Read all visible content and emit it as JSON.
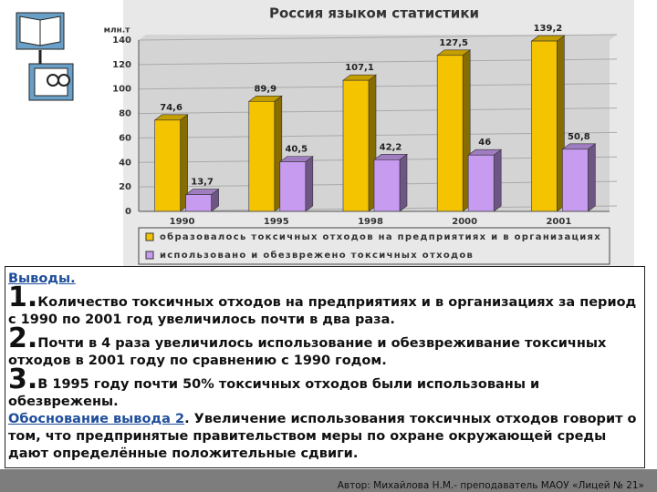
{
  "chart_data": {
    "type": "bar",
    "title": "Россия языком статистики",
    "y_label": "млн.т",
    "categories": [
      "1990",
      "1995",
      "1998",
      "2000",
      "2001"
    ],
    "series": [
      {
        "name": "образовалось токсичных отходов на предприятиях и в организациях",
        "color": "#f5c400",
        "values": [
          74.6,
          89.9,
          107.1,
          127.5,
          139.2
        ],
        "value_labels": [
          "74,6",
          "89,9",
          "107,1",
          "127,5",
          "139,2"
        ]
      },
      {
        "name": "использовано и обезврежено токсичных отходов",
        "color": "#c79cf0",
        "values": [
          13.7,
          40.5,
          42.2,
          46,
          50.8
        ],
        "value_labels": [
          "13,7",
          "40,5",
          "42,2",
          "46",
          "50,8"
        ]
      }
    ],
    "ylim": [
      0,
      140
    ],
    "yticks": [
      0,
      20,
      40,
      60,
      80,
      100,
      120,
      140
    ],
    "grid": true
  },
  "conclusions": {
    "heading": "Выводы.",
    "items": [
      {
        "number": "1.",
        "text": "Количество токсичных отходов на предприятиях и в организациях за период с 1990 по 2001 год увеличилось почти в два раза."
      },
      {
        "number": "2.",
        "text": "Почти в 4 раза увеличилось использование и обезвреживание токсичных отходов в 2001 году по сравнению с 1990 годом."
      },
      {
        "number": "3.",
        "text": "В 1995 году почти 50% токсичных отходов были использованы и обезврежены."
      }
    ],
    "justification": {
      "link": "Обоснование вывода 2",
      "text": ". Увеличение использования токсичных отходов говорит о том, что предпринятые правительством меры по охране окружающей среды дают определённые положительные сдвиги."
    }
  },
  "footer": "Автор: Михайлова Н.М.- преподаватель МАОУ «Лицей № 21»"
}
